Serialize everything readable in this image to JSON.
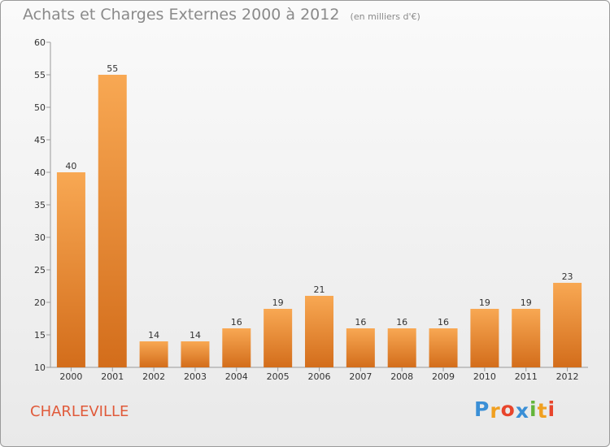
{
  "title": {
    "main": "Achats et Charges Externes 2000 à 2012",
    "unit": "(en milliers d'€)"
  },
  "city": "CHARLEVILLE",
  "logo": {
    "text": "Proxiti",
    "letters": [
      {
        "ch": "P",
        "color": "#3a8fd6"
      },
      {
        "ch": "r",
        "color": "#f0a020"
      },
      {
        "ch": "o",
        "color": "#e8452c"
      },
      {
        "ch": "x",
        "color": "#3a8fd6"
      },
      {
        "ch": "i",
        "color": "#63b53a"
      },
      {
        "ch": "t",
        "color": "#f0a020"
      },
      {
        "ch": "i",
        "color": "#e8452c"
      }
    ]
  },
  "colors": {
    "bar_top": "#f8a853",
    "bar_bottom": "#d36d1b",
    "title": "#8a8a8a",
    "city": "#e05a3a"
  },
  "chart_data": {
    "type": "bar",
    "title": "Achats et Charges Externes 2000 à 2012",
    "subtitle": "(en milliers d'€)",
    "xlabel": "",
    "ylabel": "",
    "categories": [
      "2000",
      "2001",
      "2002",
      "2003",
      "2004",
      "2005",
      "2006",
      "2007",
      "2008",
      "2009",
      "2010",
      "2011",
      "2012"
    ],
    "values": [
      40,
      55,
      14,
      14,
      16,
      19,
      21,
      16,
      16,
      16,
      19,
      19,
      23
    ],
    "ylim": [
      10,
      60
    ],
    "yticks": [
      10,
      15,
      20,
      25,
      30,
      35,
      40,
      45,
      50,
      55,
      60
    ],
    "grid": false,
    "data_labels": true
  }
}
